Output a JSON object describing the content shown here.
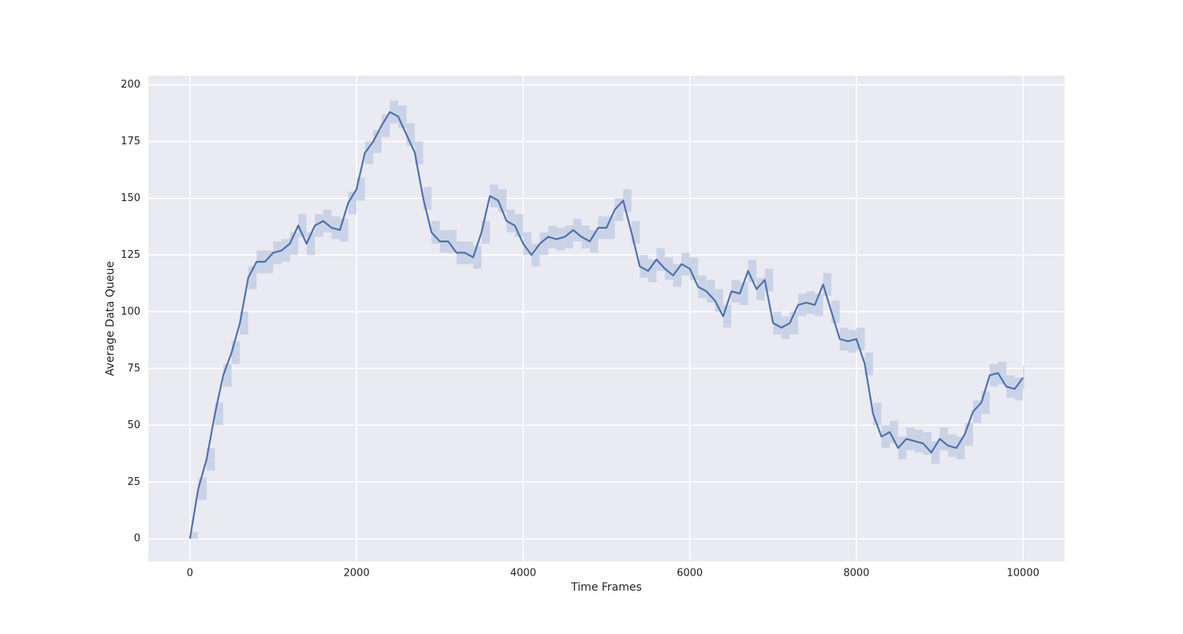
{
  "chart_data": {
    "type": "line",
    "x_label": "Time Frames",
    "y_label": "Average Data Queue",
    "xlim": [
      -500,
      10500
    ],
    "ylim": [
      -10,
      204
    ],
    "xticks": [
      0,
      2000,
      4000,
      6000,
      8000,
      10000
    ],
    "yticks": [
      0,
      25,
      50,
      75,
      100,
      125,
      150,
      175,
      200
    ],
    "grid": true,
    "x": [
      0,
      100,
      200,
      300,
      400,
      500,
      600,
      700,
      800,
      900,
      1000,
      1100,
      1200,
      1300,
      1400,
      1500,
      1600,
      1700,
      1800,
      1900,
      2000,
      2100,
      2200,
      2300,
      2400,
      2500,
      2600,
      2700,
      2800,
      2900,
      3000,
      3100,
      3200,
      3300,
      3400,
      3500,
      3600,
      3700,
      3800,
      3900,
      4000,
      4100,
      4200,
      4300,
      4400,
      4500,
      4600,
      4700,
      4800,
      4900,
      5000,
      5100,
      5200,
      5300,
      5400,
      5500,
      5600,
      5700,
      5800,
      5900,
      6000,
      6100,
      6200,
      6300,
      6400,
      6500,
      6600,
      6700,
      6800,
      6900,
      7000,
      7100,
      7200,
      7300,
      7400,
      7500,
      7600,
      7700,
      7800,
      7900,
      8000,
      8100,
      8200,
      8300,
      8400,
      8500,
      8600,
      8700,
      8800,
      8900,
      9000,
      9100,
      9200,
      9300,
      9400,
      9500,
      9600,
      9700,
      9800,
      9900,
      10000
    ],
    "series": [
      {
        "color": "#4c72b0",
        "band_color": "#c7d0e3",
        "values": [
          0,
          22,
          35,
          55,
          72,
          82,
          95,
          115,
          122,
          122,
          126,
          127,
          130,
          138,
          130,
          138,
          140,
          137,
          136,
          148,
          154,
          170,
          175,
          182,
          188,
          186,
          178,
          170,
          150,
          135,
          131,
          131,
          126,
          126,
          124,
          135,
          151,
          149,
          140,
          138,
          130,
          125,
          130,
          133,
          132,
          133,
          136,
          133,
          131,
          137,
          137,
          145,
          149,
          135,
          120,
          118,
          123,
          119,
          116,
          121,
          119,
          111,
          109,
          105,
          98,
          109,
          108,
          118,
          110,
          114,
          95,
          93,
          95,
          103,
          104,
          103,
          112,
          100,
          88,
          87,
          88,
          77,
          55,
          45,
          47,
          40,
          44,
          43,
          42,
          38,
          44,
          41,
          40,
          46,
          56,
          60,
          72,
          73,
          67,
          66,
          71
        ],
        "lower": [
          0,
          17,
          30,
          50,
          67,
          77,
          90,
          110,
          117,
          117,
          121,
          122,
          125,
          133,
          125,
          133,
          135,
          132,
          131,
          143,
          149,
          165,
          170,
          177,
          183,
          181,
          173,
          165,
          145,
          130,
          126,
          126,
          121,
          121,
          119,
          130,
          146,
          144,
          135,
          133,
          125,
          120,
          125,
          128,
          127,
          128,
          131,
          128,
          126,
          132,
          132,
          140,
          144,
          130,
          115,
          113,
          118,
          114,
          111,
          116,
          114,
          106,
          104,
          100,
          93,
          104,
          103,
          113,
          105,
          109,
          90,
          88,
          90,
          98,
          99,
          98,
          107,
          95,
          83,
          82,
          83,
          72,
          50,
          40,
          42,
          35,
          39,
          38,
          37,
          33,
          39,
          36,
          35,
          41,
          51,
          55,
          67,
          68,
          62,
          61,
          66
        ],
        "upper": [
          3,
          27,
          40,
          60,
          77,
          87,
          100,
          120,
          127,
          127,
          131,
          132,
          135,
          143,
          135,
          143,
          145,
          142,
          141,
          153,
          159,
          175,
          180,
          187,
          193,
          191,
          183,
          175,
          155,
          140,
          136,
          136,
          131,
          131,
          129,
          140,
          156,
          154,
          145,
          143,
          135,
          130,
          135,
          138,
          137,
          138,
          141,
          138,
          136,
          142,
          142,
          150,
          154,
          140,
          125,
          123,
          128,
          124,
          121,
          126,
          124,
          116,
          114,
          110,
          103,
          114,
          113,
          123,
          115,
          119,
          100,
          98,
          100,
          108,
          109,
          108,
          117,
          105,
          93,
          92,
          93,
          82,
          60,
          50,
          52,
          45,
          49,
          48,
          47,
          43,
          49,
          46,
          45,
          51,
          61,
          65,
          77,
          78,
          72,
          71,
          76
        ]
      }
    ]
  }
}
